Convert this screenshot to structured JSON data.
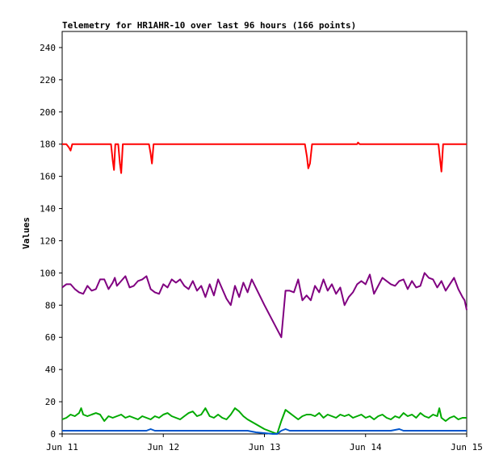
{
  "chart_data": {
    "type": "line",
    "title": "Telemetry for HR1AHR-10 over last 96 hours (166 points)",
    "xlabel": "",
    "ylabel": "Values",
    "ylim": [
      0,
      250
    ],
    "yticks": [
      0,
      20,
      40,
      60,
      80,
      100,
      120,
      140,
      160,
      180,
      200,
      220,
      240
    ],
    "xlim": [
      0,
      96
    ],
    "xticks": [
      {
        "x": 0,
        "label": "Jun 11"
      },
      {
        "x": 24,
        "label": "Jun 12"
      },
      {
        "x": 48,
        "label": "Jun 13"
      },
      {
        "x": 72,
        "label": "Jun 14"
      },
      {
        "x": 96,
        "label": "Jun 15"
      }
    ],
    "grid": false,
    "legend": "none",
    "series": [
      {
        "color": "#ff0000",
        "points": [
          [
            0,
            180
          ],
          [
            1,
            180
          ],
          [
            1.6,
            178
          ],
          [
            2,
            176
          ],
          [
            2.4,
            180
          ],
          [
            6,
            180
          ],
          [
            11.6,
            180
          ],
          [
            12,
            170
          ],
          [
            12.3,
            164
          ],
          [
            12.6,
            180
          ],
          [
            13.3,
            180
          ],
          [
            13.7,
            168
          ],
          [
            14,
            162
          ],
          [
            14.4,
            180
          ],
          [
            20,
            180
          ],
          [
            20.6,
            180
          ],
          [
            21,
            174
          ],
          [
            21.3,
            168
          ],
          [
            21.7,
            180
          ],
          [
            30,
            180
          ],
          [
            40,
            180
          ],
          [
            50,
            180
          ],
          [
            57.6,
            180
          ],
          [
            58.1,
            172
          ],
          [
            58.4,
            165
          ],
          [
            58.8,
            168
          ],
          [
            59.3,
            180
          ],
          [
            70,
            180
          ],
          [
            70.2,
            181
          ],
          [
            70.6,
            180
          ],
          [
            82,
            180
          ],
          [
            89.3,
            180
          ],
          [
            89.7,
            170
          ],
          [
            90,
            163
          ],
          [
            90.4,
            180
          ],
          [
            96,
            180
          ]
        ]
      },
      {
        "color": "#800080",
        "points": [
          [
            0,
            91
          ],
          [
            1,
            93
          ],
          [
            2,
            93
          ],
          [
            3,
            90
          ],
          [
            4,
            88
          ],
          [
            5,
            87
          ],
          [
            6,
            92
          ],
          [
            7,
            89
          ],
          [
            8,
            90
          ],
          [
            9,
            96
          ],
          [
            10,
            96
          ],
          [
            11,
            90
          ],
          [
            12,
            94
          ],
          [
            12.5,
            97
          ],
          [
            13,
            92
          ],
          [
            14,
            95
          ],
          [
            15,
            98
          ],
          [
            16,
            91
          ],
          [
            17,
            92
          ],
          [
            18,
            95
          ],
          [
            19,
            96
          ],
          [
            20,
            98
          ],
          [
            21,
            90
          ],
          [
            22,
            88
          ],
          [
            23,
            87
          ],
          [
            24,
            93
          ],
          [
            25,
            91
          ],
          [
            26,
            96
          ],
          [
            27,
            94
          ],
          [
            28,
            96
          ],
          [
            29,
            92
          ],
          [
            30,
            90
          ],
          [
            31,
            95
          ],
          [
            32,
            89
          ],
          [
            33,
            92
          ],
          [
            34,
            85
          ],
          [
            35,
            93
          ],
          [
            36,
            86
          ],
          [
            37,
            96
          ],
          [
            37.5,
            93
          ],
          [
            38,
            90
          ],
          [
            39,
            84
          ],
          [
            40,
            80
          ],
          [
            41,
            92
          ],
          [
            42,
            85
          ],
          [
            43,
            94
          ],
          [
            44,
            88
          ],
          [
            45,
            96
          ],
          [
            48,
            80
          ],
          [
            51,
            65
          ],
          [
            52,
            60
          ],
          [
            53,
            89
          ],
          [
            54,
            89
          ],
          [
            55,
            88
          ],
          [
            56,
            96
          ],
          [
            57,
            83
          ],
          [
            58,
            86
          ],
          [
            59,
            83
          ],
          [
            60,
            92
          ],
          [
            61,
            88
          ],
          [
            62,
            96
          ],
          [
            63,
            89
          ],
          [
            64,
            93
          ],
          [
            65,
            87
          ],
          [
            66,
            91
          ],
          [
            67,
            80
          ],
          [
            68,
            85
          ],
          [
            69,
            88
          ],
          [
            70,
            93
          ],
          [
            71,
            95
          ],
          [
            72,
            93
          ],
          [
            73,
            99
          ],
          [
            74,
            87
          ],
          [
            75,
            92
          ],
          [
            76,
            97
          ],
          [
            77,
            95
          ],
          [
            78,
            93
          ],
          [
            79,
            92
          ],
          [
            80,
            95
          ],
          [
            81,
            96
          ],
          [
            82,
            90
          ],
          [
            83,
            95
          ],
          [
            84,
            91
          ],
          [
            85,
            92
          ],
          [
            86,
            100
          ],
          [
            87,
            97
          ],
          [
            88,
            96
          ],
          [
            89,
            91
          ],
          [
            90,
            95
          ],
          [
            91,
            89
          ],
          [
            92,
            93
          ],
          [
            93,
            97
          ],
          [
            94,
            90
          ],
          [
            95,
            85
          ],
          [
            95.5,
            83
          ],
          [
            96,
            77
          ]
        ]
      },
      {
        "color": "#00aa00",
        "points": [
          [
            0,
            9
          ],
          [
            1,
            10
          ],
          [
            2,
            12
          ],
          [
            3,
            11
          ],
          [
            4,
            13
          ],
          [
            4.5,
            16
          ],
          [
            5,
            12
          ],
          [
            6,
            11
          ],
          [
            7,
            12
          ],
          [
            8,
            13
          ],
          [
            9,
            12
          ],
          [
            10,
            8
          ],
          [
            11,
            11
          ],
          [
            12,
            10
          ],
          [
            13,
            11
          ],
          [
            14,
            12
          ],
          [
            15,
            10
          ],
          [
            16,
            11
          ],
          [
            17,
            10
          ],
          [
            18,
            9
          ],
          [
            19,
            11
          ],
          [
            20,
            10
          ],
          [
            21,
            9
          ],
          [
            22,
            11
          ],
          [
            23,
            10
          ],
          [
            24,
            12
          ],
          [
            25,
            13
          ],
          [
            26,
            11
          ],
          [
            27,
            10
          ],
          [
            28,
            9
          ],
          [
            29,
            11
          ],
          [
            30,
            13
          ],
          [
            31,
            14
          ],
          [
            32,
            11
          ],
          [
            33,
            12
          ],
          [
            34,
            16
          ],
          [
            35,
            11
          ],
          [
            36,
            10
          ],
          [
            37,
            12
          ],
          [
            38,
            10
          ],
          [
            39,
            9
          ],
          [
            40,
            12
          ],
          [
            41,
            16
          ],
          [
            42,
            14
          ],
          [
            43,
            11
          ],
          [
            44,
            9
          ],
          [
            46,
            6
          ],
          [
            48,
            3
          ],
          [
            50,
            1
          ],
          [
            51,
            0
          ],
          [
            52,
            8
          ],
          [
            53,
            15
          ],
          [
            54,
            13
          ],
          [
            55,
            11
          ],
          [
            56,
            9
          ],
          [
            57,
            11
          ],
          [
            58,
            12
          ],
          [
            59,
            12
          ],
          [
            60,
            11
          ],
          [
            61,
            13
          ],
          [
            62,
            10
          ],
          [
            63,
            12
          ],
          [
            64,
            11
          ],
          [
            65,
            10
          ],
          [
            66,
            12
          ],
          [
            67,
            11
          ],
          [
            68,
            12
          ],
          [
            69,
            10
          ],
          [
            70,
            11
          ],
          [
            71,
            12
          ],
          [
            72,
            10
          ],
          [
            73,
            11
          ],
          [
            74,
            9
          ],
          [
            75,
            11
          ],
          [
            76,
            12
          ],
          [
            77,
            10
          ],
          [
            78,
            9
          ],
          [
            79,
            11
          ],
          [
            80,
            10
          ],
          [
            81,
            13
          ],
          [
            82,
            11
          ],
          [
            83,
            12
          ],
          [
            84,
            10
          ],
          [
            85,
            13
          ],
          [
            86,
            11
          ],
          [
            87,
            10
          ],
          [
            88,
            12
          ],
          [
            89,
            11
          ],
          [
            89.5,
            16
          ],
          [
            90,
            10
          ],
          [
            91,
            8
          ],
          [
            92,
            10
          ],
          [
            93,
            11
          ],
          [
            94,
            9
          ],
          [
            95,
            10
          ],
          [
            96,
            10
          ]
        ]
      },
      {
        "color": "#0055cc",
        "points": [
          [
            0,
            2
          ],
          [
            2,
            2
          ],
          [
            4,
            2
          ],
          [
            6,
            2
          ],
          [
            8,
            2
          ],
          [
            10,
            2
          ],
          [
            12,
            2
          ],
          [
            14,
            2
          ],
          [
            16,
            2
          ],
          [
            18,
            2
          ],
          [
            20,
            2
          ],
          [
            21,
            3
          ],
          [
            22,
            2
          ],
          [
            24,
            2
          ],
          [
            26,
            2
          ],
          [
            28,
            2
          ],
          [
            30,
            2
          ],
          [
            32,
            2
          ],
          [
            34,
            2
          ],
          [
            36,
            2
          ],
          [
            38,
            2
          ],
          [
            40,
            2
          ],
          [
            42,
            2
          ],
          [
            44,
            2
          ],
          [
            46,
            1
          ],
          [
            48,
            0.5
          ],
          [
            50,
            0
          ],
          [
            51,
            0
          ],
          [
            52,
            2
          ],
          [
            53,
            3
          ],
          [
            54,
            2
          ],
          [
            56,
            2
          ],
          [
            58,
            2
          ],
          [
            60,
            2
          ],
          [
            62,
            2
          ],
          [
            64,
            2
          ],
          [
            66,
            2
          ],
          [
            68,
            2
          ],
          [
            70,
            2
          ],
          [
            72,
            2
          ],
          [
            74,
            2
          ],
          [
            76,
            2
          ],
          [
            78,
            2
          ],
          [
            80,
            3
          ],
          [
            81,
            2
          ],
          [
            82,
            2
          ],
          [
            84,
            2
          ],
          [
            86,
            2
          ],
          [
            88,
            2
          ],
          [
            90,
            2
          ],
          [
            92,
            2
          ],
          [
            94,
            2
          ],
          [
            96,
            2
          ]
        ]
      }
    ]
  }
}
